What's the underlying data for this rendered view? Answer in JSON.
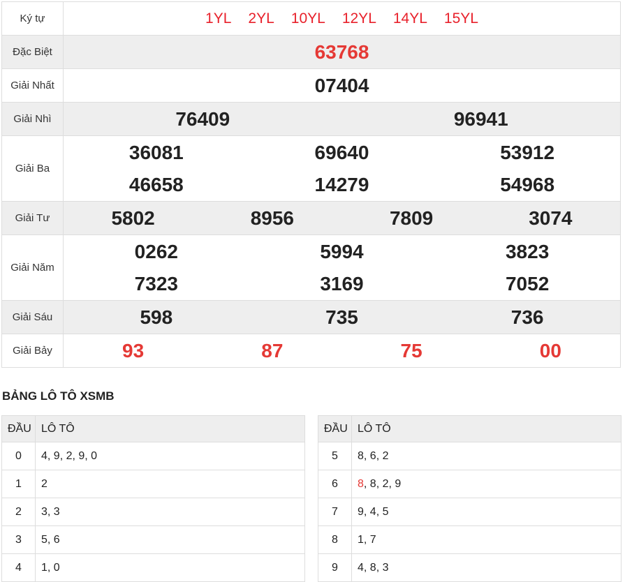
{
  "header": {
    "label": "Ký tự",
    "symbols": [
      "1YL",
      "2YL",
      "10YL",
      "12YL",
      "14YL",
      "15YL"
    ]
  },
  "prizes": [
    {
      "label": "Đặc Biệt",
      "numbers": [
        "63768"
      ],
      "red": true
    },
    {
      "label": "Giải Nhất",
      "numbers": [
        "07404"
      ]
    },
    {
      "label": "Giải Nhì",
      "numbers": [
        "76409",
        "96941"
      ]
    },
    {
      "label": "Giải Ba",
      "numbers": [
        "36081",
        "69640",
        "53912",
        "46658",
        "14279",
        "54968"
      ]
    },
    {
      "label": "Giải Tư",
      "numbers": [
        "5802",
        "8956",
        "7809",
        "3074"
      ]
    },
    {
      "label": "Giải Năm",
      "numbers": [
        "0262",
        "5994",
        "3823",
        "7323",
        "3169",
        "7052"
      ]
    },
    {
      "label": "Giải Sáu",
      "numbers": [
        "598",
        "735",
        "736"
      ]
    },
    {
      "label": "Giải Bảy",
      "numbers": [
        "93",
        "87",
        "75",
        "00"
      ],
      "red": true
    }
  ],
  "loto": {
    "title": "BẢNG LÔ TÔ XSMB",
    "head_col": "ĐẦU",
    "loto_col": "LÔ TÔ",
    "left": [
      {
        "dau": "0",
        "loto": "4, 9, 2, 9, 0"
      },
      {
        "dau": "1",
        "loto": "2"
      },
      {
        "dau": "2",
        "loto": "3, 3"
      },
      {
        "dau": "3",
        "loto": "5, 6"
      },
      {
        "dau": "4",
        "loto": "1, 0"
      }
    ],
    "right": [
      {
        "dau": "5",
        "loto": "8, 6, 2"
      },
      {
        "dau": "6",
        "loto_highlight": "8",
        "loto": ", 8, 2, 9"
      },
      {
        "dau": "7",
        "loto": "9, 4, 5"
      },
      {
        "dau": "8",
        "loto": "1, 7"
      },
      {
        "dau": "9",
        "loto": "4, 8, 3"
      }
    ]
  },
  "colors": {
    "red": "#e53935",
    "symbol_red": "#e8212b",
    "stripe": "#eeeeee",
    "border": "#dddddd"
  }
}
